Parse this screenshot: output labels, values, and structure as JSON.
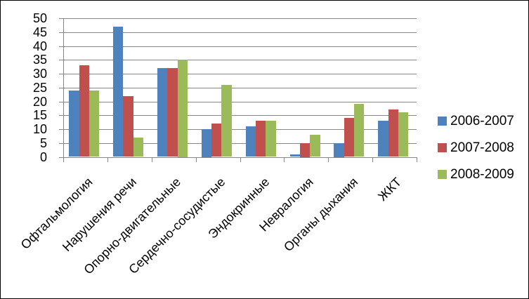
{
  "chart_data": {
    "type": "bar",
    "title": "",
    "xlabel": "",
    "ylabel": "",
    "categories": [
      "Офтальмология",
      "Нарушения речи",
      "Опорно-двигательные",
      "Сердечно-сосудистые",
      "Эндокринные",
      "Невралогия",
      "Органы дыхания",
      "ЖКТ"
    ],
    "series": [
      {
        "name": "2006-2007",
        "color": "#4F81BD",
        "values": [
          24,
          47,
          32,
          10,
          11,
          1,
          5,
          13
        ]
      },
      {
        "name": "2007-2008",
        "color": "#C0504D",
        "values": [
          33,
          22,
          32,
          12,
          13,
          5,
          14,
          17
        ]
      },
      {
        "name": "2008-2009",
        "color": "#9BBB59",
        "values": [
          24,
          7,
          35,
          26,
          13,
          8,
          19,
          16
        ]
      }
    ],
    "ylim": [
      0,
      50
    ],
    "yticks": [
      0,
      5,
      10,
      15,
      20,
      25,
      30,
      35,
      40,
      45,
      50
    ],
    "grid": "horizontal-major",
    "grid_color": "#878787",
    "axis_color": "#878787",
    "background_color": "#FFFFFF",
    "legend_position": "right",
    "category_label_rotation_deg": -45
  }
}
